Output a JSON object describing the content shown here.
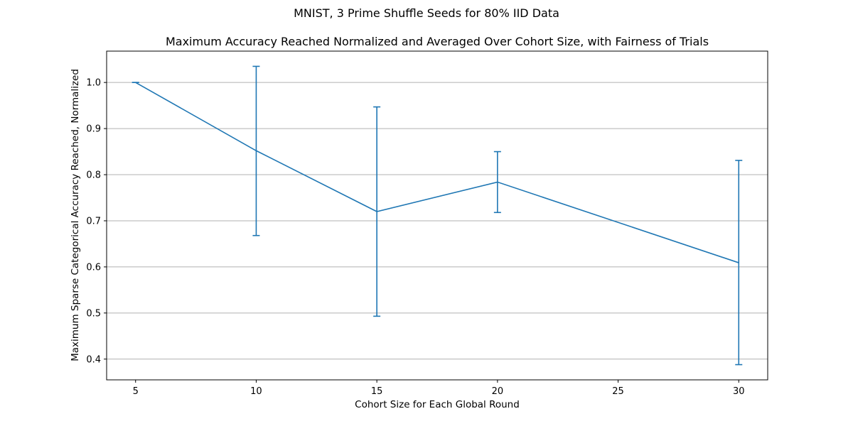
{
  "figure": {
    "suptitle": "MNIST, 3 Prime Shuffle Seeds for 80% IID Data"
  },
  "chart_data": {
    "type": "line",
    "title": "Maximum Accuracy Reached Normalized and Averaged Over Cohort Size, with Fairness of Trials",
    "xlabel": "Cohort Size for Each Global Round",
    "ylabel": "Maximum Sparse Categorical Accuracy Reached, Normalized",
    "xlim": [
      3.8,
      31.2
    ],
    "ylim": [
      0.355,
      1.068
    ],
    "xticks": [
      5,
      10,
      15,
      20,
      25,
      30
    ],
    "yticks": [
      0.4,
      0.5,
      0.6,
      0.7,
      0.8,
      0.9,
      1.0
    ],
    "grid": "y-major",
    "color": "#1f77b4",
    "series": [
      {
        "x": [
          5,
          10,
          15,
          20,
          30
        ],
        "y": [
          1.0,
          0.852,
          0.72,
          0.784,
          0.609
        ],
        "yerr_low": [
          1.0,
          0.668,
          0.493,
          0.718,
          0.388
        ],
        "yerr_high": [
          1.0,
          1.035,
          0.947,
          0.85,
          0.831
        ]
      }
    ]
  }
}
